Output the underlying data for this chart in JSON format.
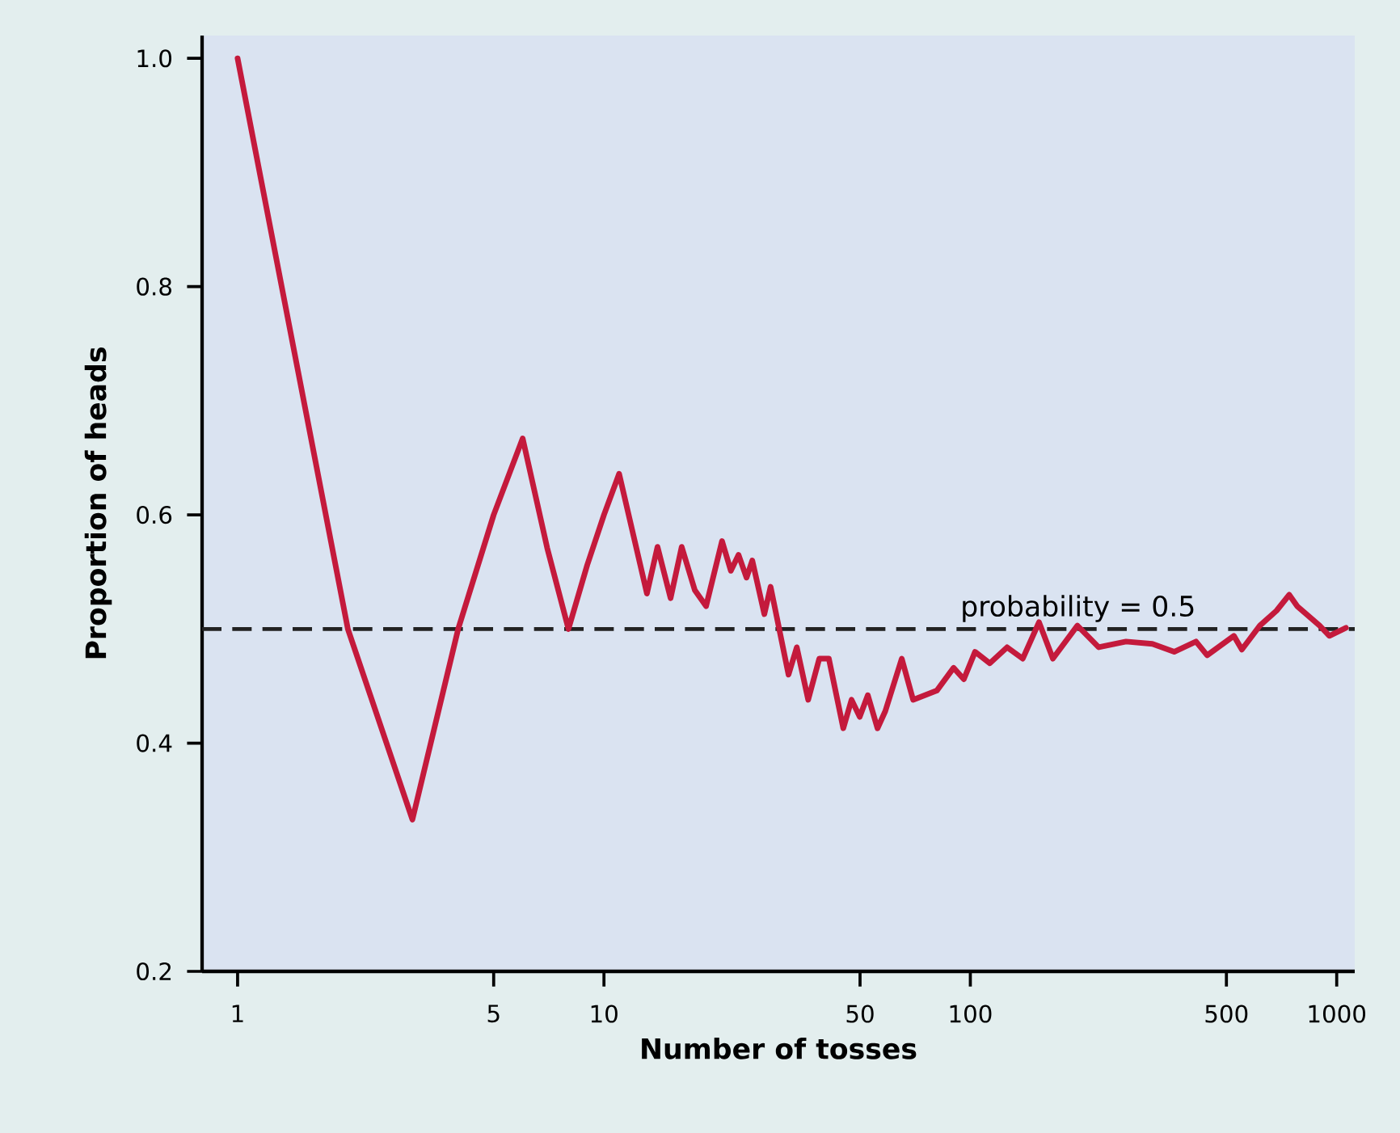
{
  "chart_data": {
    "type": "line",
    "xlabel": "Number of tosses",
    "ylabel": "Proportion of heads",
    "log": "x",
    "xlim": [
      0.8,
      1120
    ],
    "ylim": [
      0.2,
      1.02
    ],
    "xticks": [
      1,
      5,
      10,
      50,
      100,
      500,
      1000
    ],
    "yticks": [
      {
        "value": 0.2,
        "label": "0.2"
      },
      {
        "value": 0.4,
        "label": "0.4"
      },
      {
        "value": 0.6,
        "label": "0.6"
      },
      {
        "value": 0.8,
        "label": "0.8"
      },
      {
        "value": 1,
        "label": "1.0"
      }
    ],
    "grid": false,
    "marker": "none",
    "line_style": "solid",
    "ref_lines": [
      {
        "axis": "y",
        "value": 0.5,
        "label": "probability = 0.5",
        "color": "#222222",
        "line_style": "dashed"
      }
    ],
    "series": [
      {
        "color": "#c41a3c",
        "x": [
          1,
          2,
          3,
          4,
          5,
          6,
          7,
          8,
          9,
          10,
          11,
          13.1,
          14,
          15.2,
          16.3,
          17.7,
          19,
          21,
          22.2,
          23.3,
          24.5,
          25.4,
          27.4,
          28.5,
          31.9,
          33.6,
          36.1,
          38.7,
          41.1,
          45,
          47.4,
          49.9,
          52.5,
          55.8,
          58.6,
          65,
          69.8,
          81,
          90,
          96,
          103,
          113,
          126,
          139,
          154,
          168,
          196,
          224,
          266,
          314,
          360,
          413,
          443,
          524,
          551,
          617,
          685,
          742,
          780,
          898,
          955,
          1060
        ],
        "values": [
          1.0,
          0.5,
          0.333,
          0.5,
          0.6,
          0.667,
          0.571,
          0.5,
          0.556,
          0.6,
          0.636,
          0.531,
          0.572,
          0.527,
          0.572,
          0.534,
          0.52,
          0.577,
          0.551,
          0.565,
          0.545,
          0.56,
          0.513,
          0.537,
          0.46,
          0.484,
          0.438,
          0.474,
          0.474,
          0.413,
          0.438,
          0.423,
          0.442,
          0.413,
          0.428,
          0.474,
          0.438,
          0.446,
          0.466,
          0.456,
          0.48,
          0.47,
          0.484,
          0.474,
          0.506,
          0.474,
          0.503,
          0.484,
          0.489,
          0.487,
          0.48,
          0.489,
          0.477,
          0.494,
          0.482,
          0.503,
          0.516,
          0.53,
          0.52,
          0.503,
          0.494,
          0.501
        ]
      }
    ]
  }
}
